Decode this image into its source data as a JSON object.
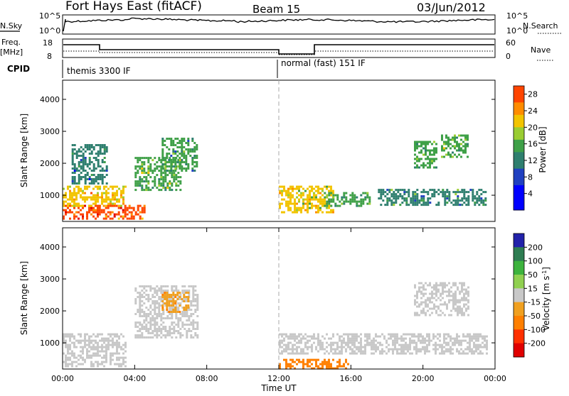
{
  "header": {
    "station": "Fort Hays East (fitACF)",
    "beam": "Beam 15",
    "date": "03/Jun/2012"
  },
  "noise_panel": {
    "left_label": "N.Sky",
    "right_label": "N.Search",
    "left_ticks": [
      "10^5",
      "10^0"
    ],
    "right_ticks": [
      "10^5",
      "10^0"
    ]
  },
  "freq_panel": {
    "left_label": "Freq.",
    "left_unit": "[MHz]",
    "right_label": "Nave",
    "left_ticks": [
      "18",
      "8"
    ],
    "right_ticks": [
      "60",
      "0"
    ]
  },
  "cpid_panel": {
    "label": "CPID",
    "segments": [
      {
        "text": "themis 3300 IF",
        "start_hour": 0
      },
      {
        "text": "normal (fast) 151 IF",
        "start_hour": 12
      }
    ]
  },
  "chart_data": [
    {
      "type": "heatmap",
      "name": "power",
      "xlabel": "Time UT",
      "ylabel": "Slant Range [km]",
      "x_ticks": [
        "00:00",
        "04:00",
        "08:00",
        "12:00",
        "16:00",
        "20:00",
        "00:00"
      ],
      "xlim_hours": [
        0,
        24
      ],
      "y_ticks": [
        1000,
        2000,
        3000,
        4000
      ],
      "ylim": [
        180,
        4600
      ],
      "colorbar": {
        "label": "Power [dB]",
        "ticks": [
          4,
          8,
          12,
          16,
          20,
          24,
          28
        ],
        "range": [
          0,
          30
        ],
        "stops": [
          {
            "v": 0,
            "color": "#0000ff"
          },
          {
            "v": 6,
            "color": "#2040c0"
          },
          {
            "v": 10,
            "color": "#2f7f6f"
          },
          {
            "v": 14,
            "color": "#3fa048"
          },
          {
            "v": 17,
            "color": "#9acd32"
          },
          {
            "v": 20,
            "color": "#f2c400"
          },
          {
            "v": 23,
            "color": "#ff8c00"
          },
          {
            "v": 26,
            "color": "#ff4500"
          },
          {
            "v": 30,
            "color": "#e00000"
          }
        ]
      },
      "echo_regions": [
        {
          "t0": 0.0,
          "t1": 2.0,
          "r0": 250,
          "r1": 700,
          "value": 28
        },
        {
          "t0": 0.0,
          "t1": 3.5,
          "r0": 700,
          "r1": 1300,
          "value": 22
        },
        {
          "t0": 2.0,
          "t1": 4.5,
          "r0": 300,
          "r1": 700,
          "value": 27
        },
        {
          "t0": 4.0,
          "t1": 6.5,
          "r0": 1200,
          "r1": 2200,
          "value": 16
        },
        {
          "t0": 5.5,
          "t1": 7.5,
          "r0": 1800,
          "r1": 2800,
          "value": 14
        },
        {
          "t0": 0.5,
          "t1": 2.5,
          "r0": 1400,
          "r1": 2600,
          "value": 10
        },
        {
          "t0": 12.0,
          "t1": 15.0,
          "r0": 500,
          "r1": 1300,
          "value": 20
        },
        {
          "t0": 14.5,
          "t1": 17.0,
          "r0": 700,
          "r1": 1100,
          "value": 15
        },
        {
          "t0": 17.5,
          "t1": 23.5,
          "r0": 700,
          "r1": 1200,
          "value": 13
        },
        {
          "t0": 19.5,
          "t1": 20.8,
          "r0": 1900,
          "r1": 2700,
          "value": 15
        },
        {
          "t0": 21.0,
          "t1": 22.5,
          "r0": 2200,
          "r1": 2900,
          "value": 16
        }
      ]
    },
    {
      "type": "heatmap",
      "name": "velocity",
      "xlabel": "Time UT",
      "ylabel": "Slant Range [km]",
      "x_ticks": [
        "00:00",
        "04:00",
        "08:00",
        "12:00",
        "16:00",
        "20:00",
        "00:00"
      ],
      "xlim_hours": [
        0,
        24
      ],
      "y_ticks": [
        1000,
        2000,
        3000,
        4000
      ],
      "ylim": [
        180,
        4600
      ],
      "colorbar": {
        "label": "Velocity [m s",
        "label_sup": "-1",
        "label_end": "]",
        "ticks": [
          200,
          100,
          50,
          15,
          -15,
          -50,
          -100,
          -200
        ],
        "bands": [
          "#2222aa",
          "#2e7d52",
          "#3db33d",
          "#90d050",
          "#c8c8c8",
          "#f0a020",
          "#ff7f00",
          "#ff3000",
          "#e00000"
        ]
      },
      "echo_regions": [
        {
          "t0": 0.0,
          "t1": 3.5,
          "r0": 250,
          "r1": 1300,
          "value": "ground"
        },
        {
          "t0": 4.0,
          "t1": 7.5,
          "r0": 1200,
          "r1": 2800,
          "value": "ground"
        },
        {
          "t0": 5.5,
          "t1": 7.0,
          "r0": 2000,
          "r1": 2600,
          "value": -50
        },
        {
          "t0": 12.0,
          "t1": 23.5,
          "r0": 700,
          "r1": 1300,
          "value": "ground"
        },
        {
          "t0": 12.0,
          "t1": 16.0,
          "r0": 200,
          "r1": 500,
          "value": -60
        },
        {
          "t0": 19.5,
          "t1": 22.5,
          "r0": 1900,
          "r1": 2900,
          "value": "ground"
        }
      ]
    }
  ],
  "cpid_x_hour": 12
}
